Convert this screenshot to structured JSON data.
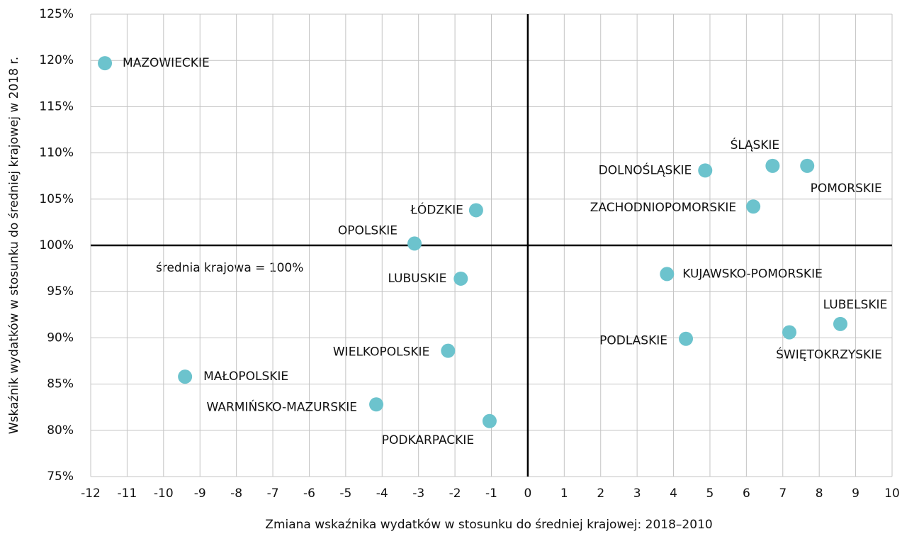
{
  "chart_data": {
    "type": "scatter",
    "xlabel": "Zmiana wskaźnika wydatków w stosunku do średniej krajowej: 2018–2010",
    "ylabel": "Wskaźnik wydatków w stosunku do średniej krajowej w 2018 r.",
    "annotation": "średnia krajowa = 100%",
    "color": "#6cc3cd",
    "grid": true,
    "hline": 100,
    "vline": 0,
    "labels": [
      "MAZOWIECKIE",
      "ŁÓDZKIE",
      "OPOLSKIE",
      "LUBUSKIE",
      "WIELKOPOLSKIE",
      "MAŁOPOLSKIE",
      "WARMIŃSKO-MAZURSKIE",
      "PODKARPACKIE",
      "DOLNOŚLĄSKIE",
      "ŚLĄSKIE",
      "POMORSKIE",
      "ZACHODNIOPOMORSKIE",
      "KUJAWSKO-POMORSKIE",
      "PODLASKIE",
      "ŚWIĘTOKRZYSKIE",
      "LUBELSKIE"
    ],
    "x": [
      -11.61,
      -1.42,
      -3.11,
      -1.84,
      -2.19,
      -9.41,
      -4.16,
      -1.05,
      4.87,
      6.72,
      7.67,
      6.19,
      3.82,
      4.34,
      7.18,
      8.58
    ],
    "values": [
      119.7,
      103.8,
      100.2,
      96.4,
      88.6,
      85.8,
      82.8,
      81.0,
      108.1,
      108.6,
      108.6,
      104.2,
      96.9,
      89.9,
      90.6,
      91.5
    ],
    "xlim": [
      -12,
      10
    ],
    "xticks": [
      -12,
      -11,
      -10,
      -9,
      -8,
      -7,
      -6,
      -5,
      -4,
      -3,
      -2,
      -1,
      0,
      1,
      2,
      3,
      4,
      5,
      6,
      7,
      8,
      9,
      10
    ],
    "ylim": [
      75,
      125
    ],
    "yticks": [
      {
        "value": 75,
        "label": "75%"
      },
      {
        "value": 80,
        "label": "80%"
      },
      {
        "value": 85,
        "label": "85%"
      },
      {
        "value": 90,
        "label": "90%"
      },
      {
        "value": 95,
        "label": "95%"
      },
      {
        "value": 100,
        "label": "100%"
      },
      {
        "value": 105,
        "label": "105%"
      },
      {
        "value": 110,
        "label": "110%"
      },
      {
        "value": 115,
        "label": "115%"
      },
      {
        "value": 120,
        "label": "120%"
      },
      {
        "value": 125,
        "label": "125%"
      }
    ]
  }
}
